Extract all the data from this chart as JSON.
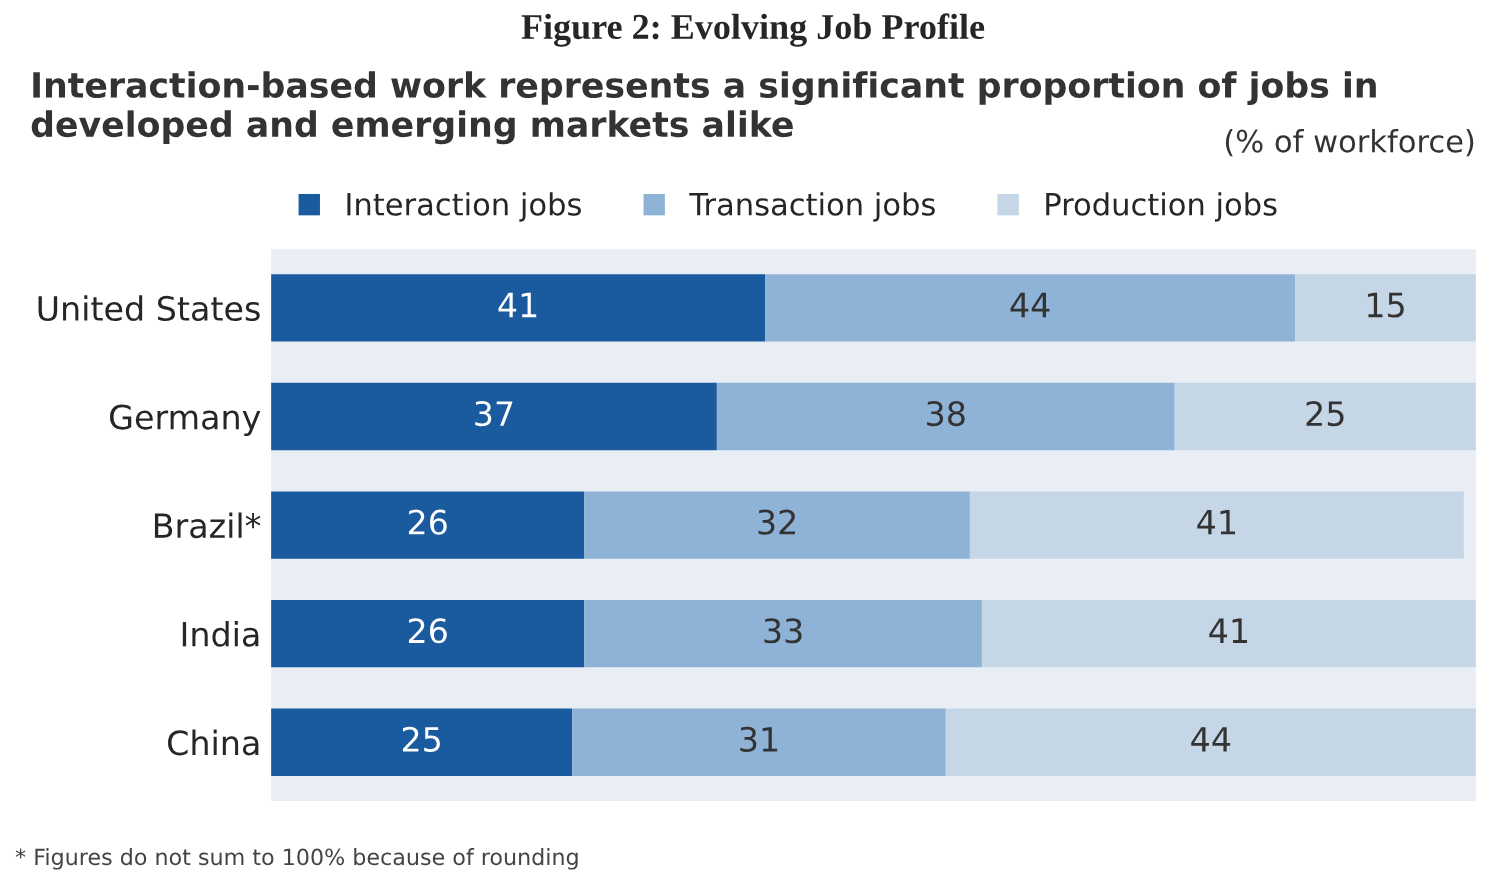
{
  "chart_data": {
    "type": "bar",
    "orientation": "horizontal",
    "stacked": true,
    "data_labels": true,
    "title": "Figure 2: Evolving Job Profile",
    "subtitle": "Interaction-based work represents a significant proportion of jobs in developed and emerging markets alike",
    "xlabel": "(% of workforce)",
    "annotations": [
      "* Figures do not sum to 100% because of rounding"
    ],
    "categories": [
      "United States",
      "Germany",
      "Brazil*",
      "India",
      "China"
    ],
    "series": [
      {
        "name": "Interaction jobs",
        "color": "#1a5a9e",
        "values": [
          41,
          37,
          26,
          26,
          25
        ]
      },
      {
        "name": "Transaction jobs",
        "color": "#8fb3d6",
        "values": [
          44,
          38,
          32,
          33,
          31
        ]
      },
      {
        "name": "Production jobs",
        "color": "#c5d6e6",
        "values": [
          15,
          25,
          41,
          41,
          44
        ]
      }
    ],
    "legend": "top",
    "grid": false
  }
}
